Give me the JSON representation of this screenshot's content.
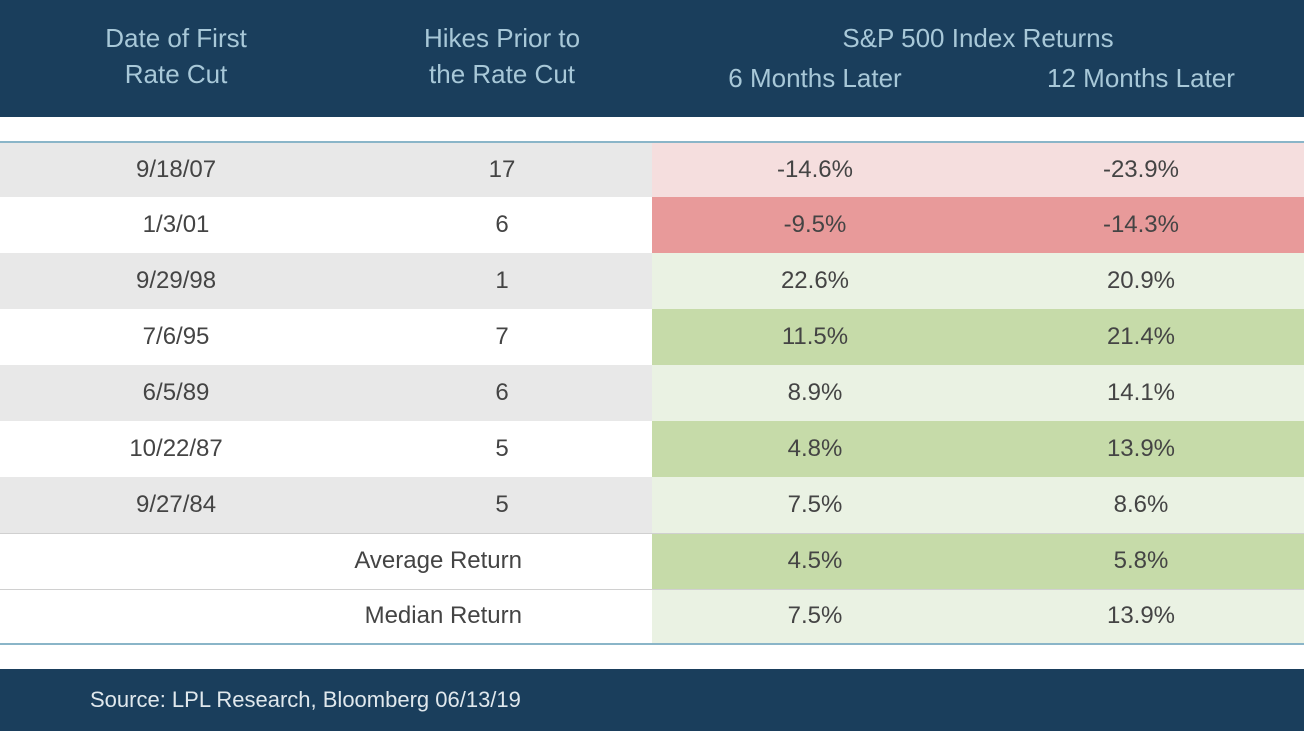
{
  "table": {
    "headers": {
      "date": "Date of First\nRate Cut",
      "hikes": "Hikes Prior to\nthe Rate Cut",
      "returns_group": "S&P 500 Index Returns",
      "six_mo": "6 Months Later",
      "twelve_mo": "12 Months Later"
    },
    "header_bg": "#1a3e5c",
    "header_text_color": "#a8c8d8",
    "header_fontsize": 26,
    "body_fontsize": 24,
    "body_text_color": "#444444",
    "row_bg_alt": "#e8e8e8",
    "row_bg_plain": "#ffffff",
    "return_bg_light_red": "#f5dede",
    "return_bg_red": "#e89a9a",
    "return_bg_light_green": "#eaf2e3",
    "return_bg_green": "#c6dba9",
    "border_color": "#8ab5c8",
    "rows": [
      {
        "date": "9/18/07",
        "hikes": "17",
        "six_mo": "-14.6%",
        "twelve_mo": "-23.9%",
        "alt_bg": true,
        "ret_bg": "light_red"
      },
      {
        "date": "1/3/01",
        "hikes": "6",
        "six_mo": "-9.5%",
        "twelve_mo": "-14.3%",
        "alt_bg": false,
        "ret_bg": "red"
      },
      {
        "date": "9/29/98",
        "hikes": "1",
        "six_mo": "22.6%",
        "twelve_mo": "20.9%",
        "alt_bg": true,
        "ret_bg": "light_green"
      },
      {
        "date": "7/6/95",
        "hikes": "7",
        "six_mo": "11.5%",
        "twelve_mo": "21.4%",
        "alt_bg": false,
        "ret_bg": "green"
      },
      {
        "date": "6/5/89",
        "hikes": "6",
        "six_mo": "8.9%",
        "twelve_mo": "14.1%",
        "alt_bg": true,
        "ret_bg": "light_green"
      },
      {
        "date": "10/22/87",
        "hikes": "5",
        "six_mo": "4.8%",
        "twelve_mo": "13.9%",
        "alt_bg": false,
        "ret_bg": "green"
      },
      {
        "date": "9/27/84",
        "hikes": "5",
        "six_mo": "7.5%",
        "twelve_mo": "8.6%",
        "alt_bg": true,
        "ret_bg": "light_green"
      }
    ],
    "summary": [
      {
        "label": "Average Return",
        "six_mo": "4.5%",
        "twelve_mo": "5.8%",
        "ret_bg": "green"
      },
      {
        "label": "Median Return",
        "six_mo": "7.5%",
        "twelve_mo": "13.9%",
        "ret_bg": "light_green"
      }
    ],
    "source": "Source: LPL Research, Bloomberg 06/13/19"
  }
}
